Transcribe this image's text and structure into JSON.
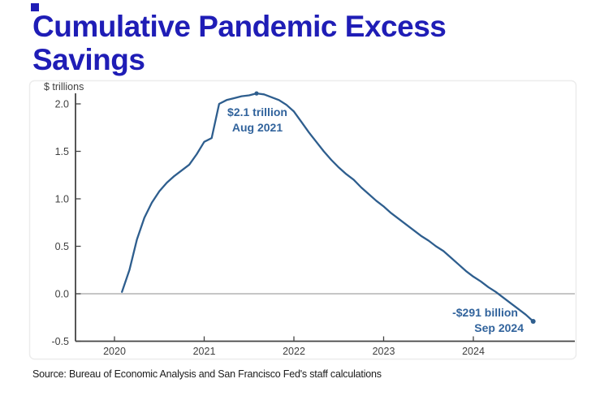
{
  "page": {
    "title_line1": "Cumulative Pandemic Excess",
    "title_line2": "Savings",
    "source": "Source: Bureau of Economic Analysis and San Francisco Fed's staff calculations"
  },
  "chart_data": {
    "type": "line",
    "title": "Cumulative Pandemic Excess Savings",
    "xlabel": "",
    "ylabel": "$ trillions",
    "ylim": [
      -0.5,
      2.15
    ],
    "grid": "none",
    "zero_line": true,
    "legend_position": "none",
    "line_color": "#2e5e8e",
    "zero_line_color": "#a3a3a3",
    "x_ticks": [
      "2020",
      "2021",
      "2022",
      "2023",
      "2024"
    ],
    "y_ticks": [
      "2.0",
      "1.5",
      "1.0",
      "0.5",
      "0.0",
      "-0.5"
    ],
    "y_tick_values": [
      2.0,
      1.5,
      1.0,
      0.5,
      0.0,
      -0.5
    ],
    "points": [
      [
        "2020-02",
        0.02
      ],
      [
        "2020-03",
        0.25
      ],
      [
        "2020-04",
        0.57
      ],
      [
        "2020-05",
        0.8
      ],
      [
        "2020-06",
        0.96
      ],
      [
        "2020-07",
        1.08
      ],
      [
        "2020-08",
        1.17
      ],
      [
        "2020-09",
        1.24
      ],
      [
        "2020-10",
        1.3
      ],
      [
        "2020-11",
        1.36
      ],
      [
        "2020-12",
        1.47
      ],
      [
        "2021-01",
        1.6
      ],
      [
        "2021-02",
        1.64
      ],
      [
        "2021-03",
        2.0
      ],
      [
        "2021-04",
        2.04
      ],
      [
        "2021-05",
        2.06
      ],
      [
        "2021-06",
        2.08
      ],
      [
        "2021-07",
        2.09
      ],
      [
        "2021-08",
        2.11
      ],
      [
        "2021-09",
        2.1
      ],
      [
        "2021-10",
        2.07
      ],
      [
        "2021-11",
        2.04
      ],
      [
        "2021-12",
        1.99
      ],
      [
        "2022-01",
        1.92
      ],
      [
        "2022-02",
        1.81
      ],
      [
        "2022-03",
        1.7
      ],
      [
        "2022-04",
        1.6
      ],
      [
        "2022-05",
        1.5
      ],
      [
        "2022-06",
        1.41
      ],
      [
        "2022-07",
        1.33
      ],
      [
        "2022-08",
        1.26
      ],
      [
        "2022-09",
        1.2
      ],
      [
        "2022-10",
        1.12
      ],
      [
        "2022-11",
        1.05
      ],
      [
        "2022-12",
        0.98
      ],
      [
        "2023-01",
        0.92
      ],
      [
        "2023-02",
        0.85
      ],
      [
        "2023-03",
        0.79
      ],
      [
        "2023-04",
        0.73
      ],
      [
        "2023-05",
        0.67
      ],
      [
        "2023-06",
        0.61
      ],
      [
        "2023-07",
        0.56
      ],
      [
        "2023-08",
        0.5
      ],
      [
        "2023-09",
        0.45
      ],
      [
        "2023-10",
        0.38
      ],
      [
        "2023-11",
        0.31
      ],
      [
        "2023-12",
        0.24
      ],
      [
        "2024-01",
        0.18
      ],
      [
        "2024-02",
        0.13
      ],
      [
        "2024-03",
        0.07
      ],
      [
        "2024-04",
        0.02
      ],
      [
        "2024-05",
        -0.04
      ],
      [
        "2024-06",
        -0.1
      ],
      [
        "2024-07",
        -0.16
      ],
      [
        "2024-08",
        -0.22
      ],
      [
        "2024-09",
        -0.291
      ]
    ],
    "annotations": [
      {
        "text_line1": "$2.1 trillion",
        "text_line2": "Aug 2021",
        "x": "2021-08",
        "y": 2.11,
        "marker": true
      },
      {
        "text_line1": "-$291 billion",
        "text_line2": "Sep 2024",
        "x": "2024-09",
        "y": -0.291,
        "marker": true
      }
    ]
  }
}
